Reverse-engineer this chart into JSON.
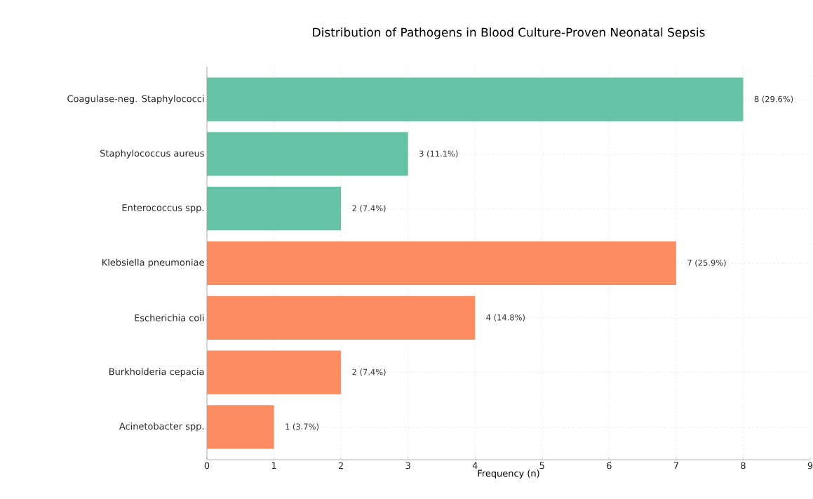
{
  "chart_data": {
    "type": "bar",
    "orientation": "horizontal",
    "title": "Distribution of Pathogens in Blood Culture-Proven Neonatal Sepsis",
    "xlabel": "Frequency (n)",
    "categories": [
      "Coagulase-neg. Staphylococci",
      "Staphylococcus aureus",
      "Enterococcus spp.",
      "Klebsiella pneumoniae",
      "Escherichia coli",
      "Burkholderia cepacia",
      "Acinetobacter spp."
    ],
    "values": [
      8,
      3,
      2,
      7,
      4,
      2,
      1
    ],
    "colors": [
      "#66c2a5",
      "#66c2a5",
      "#66c2a5",
      "#fc8d62",
      "#fc8d62",
      "#fc8d62",
      "#fc8d62"
    ],
    "value_labels": [
      "8 (29.6%)",
      "3 (11.1%)",
      "2 (7.4%)",
      "7 (25.9%)",
      "4 (14.8%)",
      "2 (7.4%)",
      "1 (3.7%)"
    ],
    "xlim": [
      0,
      9
    ],
    "xticks": [
      0,
      1,
      2,
      3,
      4,
      5,
      6,
      7,
      8,
      9
    ],
    "grid": true
  }
}
